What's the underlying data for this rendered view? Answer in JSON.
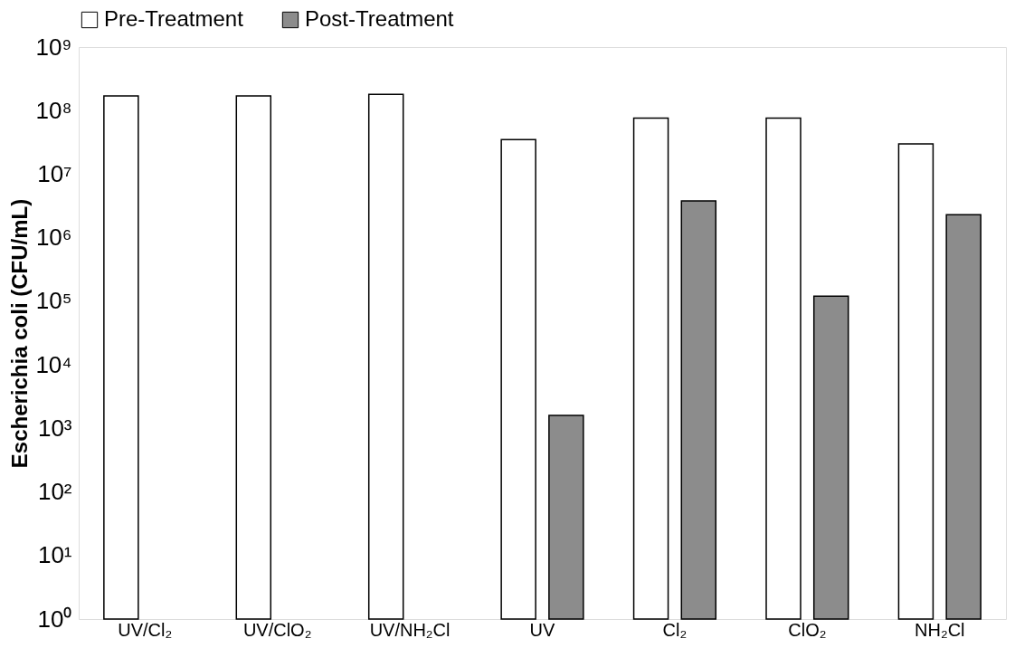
{
  "chart_data": {
    "type": "bar",
    "ylabel": "Escherichia coli (CFU/mL)",
    "categories": [
      "UV/Cl₂",
      "UV/ClO₂",
      "UV/NH₂Cl",
      "UV",
      "Cl₂",
      "ClO₂",
      "NH₂Cl"
    ],
    "series": [
      {
        "name": "Pre-Treatment",
        "color": "#ffffff",
        "values": [
          170000000,
          170000000,
          180000000,
          35000000,
          76000000,
          76000000,
          30000000
        ]
      },
      {
        "name": "Post-Treatment",
        "color": "#8c8c8c",
        "values": [
          null,
          null,
          null,
          1600,
          3800000,
          120000,
          2300000
        ]
      }
    ],
    "log": "y",
    "ylim": [
      1,
      1000000000
    ],
    "yticks": [
      {
        "value": 1,
        "label": "10⁰"
      },
      {
        "value": 10,
        "label": "10¹"
      },
      {
        "value": 100,
        "label": "10²"
      },
      {
        "value": 1000,
        "label": "10³"
      },
      {
        "value": 10000,
        "label": "10⁴"
      },
      {
        "value": 100000,
        "label": "10⁵"
      },
      {
        "value": 1000000,
        "label": "10⁶"
      },
      {
        "value": 10000000,
        "label": "10⁷"
      },
      {
        "value": 100000000,
        "label": "10⁸"
      },
      {
        "value": 1000000000,
        "label": "10⁹"
      }
    ],
    "grid": false,
    "legend": "top"
  }
}
